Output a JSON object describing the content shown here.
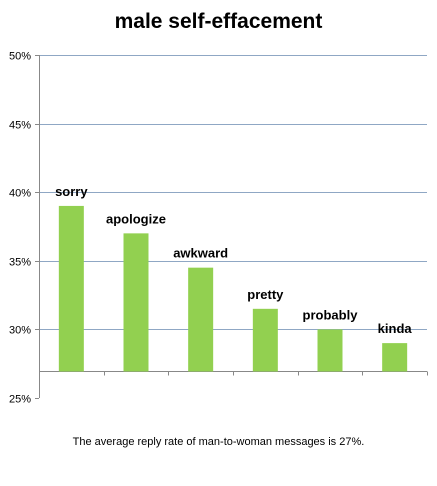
{
  "chart_data": {
    "type": "bar",
    "title": "male self-effacement",
    "categories": [
      "sorry",
      "apologize",
      "awkward",
      "pretty",
      "probably",
      "kinda"
    ],
    "values": [
      39,
      37,
      34.5,
      31.5,
      30,
      29
    ],
    "ylim": [
      25,
      50
    ],
    "y_ticks": [
      "25%",
      "30%",
      "35%",
      "40%",
      "45%",
      "50%"
    ],
    "y_tick_values": [
      25,
      30,
      35,
      40,
      45,
      50
    ],
    "baseline": 27,
    "grid": true,
    "note": "The average reply rate of man-to-woman  messages is 27%.",
    "bar_color": "#92d050",
    "grid_color": "#8fa7c4"
  }
}
